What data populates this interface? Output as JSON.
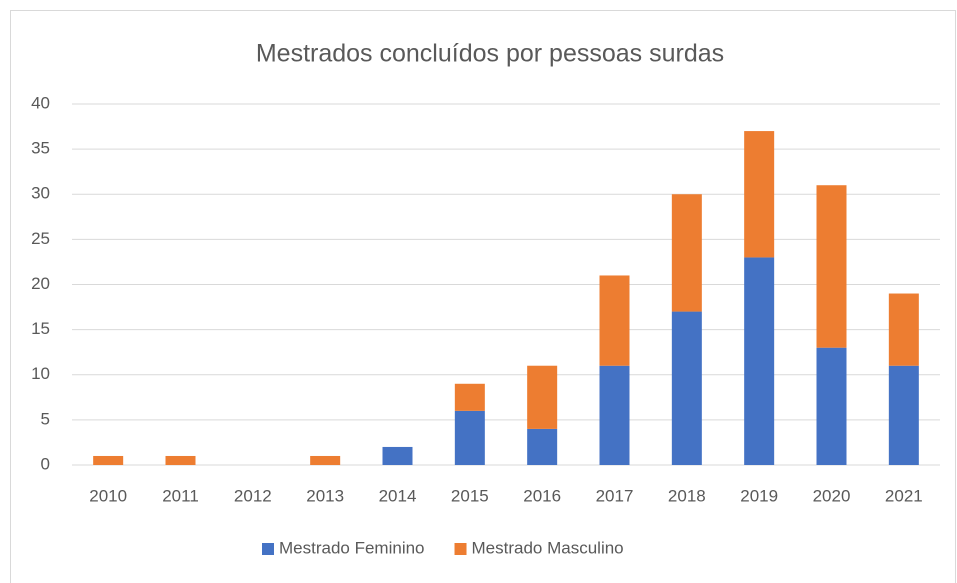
{
  "chart_data": {
    "type": "bar",
    "stacked": true,
    "title": "Mestrados concluídos por pessoas surdas",
    "categories": [
      "2010",
      "2011",
      "2012",
      "2013",
      "2014",
      "2015",
      "2016",
      "2017",
      "2018",
      "2019",
      "2020",
      "2021"
    ],
    "series": [
      {
        "name": "Mestrado Feminino",
        "color": "#4472c4",
        "values": [
          0,
          0,
          0,
          0,
          2,
          6,
          4,
          11,
          17,
          23,
          13,
          11
        ]
      },
      {
        "name": "Mestrado Masculino",
        "color": "#ed7d31",
        "values": [
          1,
          1,
          0,
          1,
          0,
          3,
          7,
          10,
          13,
          14,
          18,
          8
        ]
      }
    ],
    "ylim": [
      0,
      40
    ],
    "yticks": [
      0,
      5,
      10,
      15,
      20,
      25,
      30,
      35,
      40
    ],
    "grid": true,
    "legend": "bottom"
  }
}
